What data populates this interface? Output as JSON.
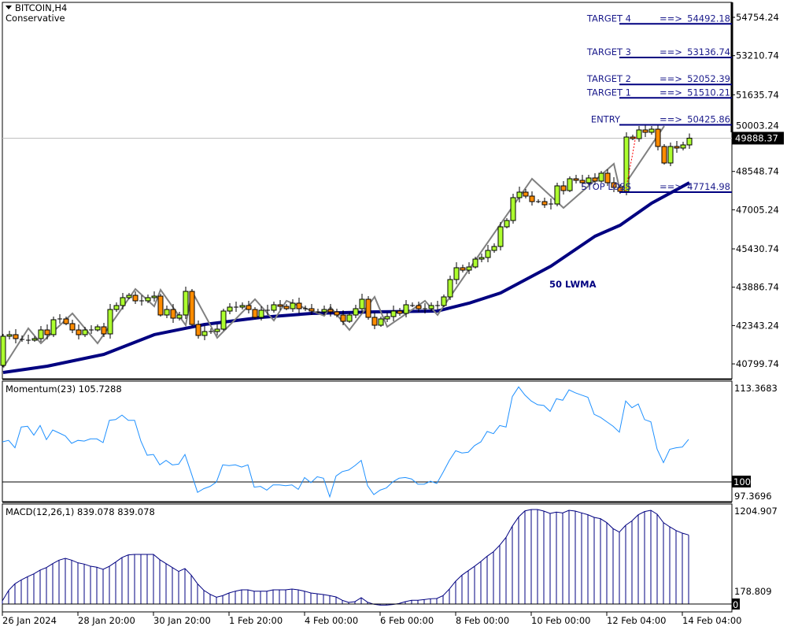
{
  "header": {
    "symbol": "BITCOIN,H4",
    "subtitle": "Conservative"
  },
  "colors": {
    "bull": "#adff2f",
    "bear": "#ff8c00",
    "zigzag": "#808080",
    "lwma": "#000080",
    "levels": "#000080",
    "level_text": "#1c1c8c",
    "momentum": "#1e90ff",
    "macd": "#000080"
  },
  "annotations": {
    "lwma_label": "50 LWMA"
  },
  "current_price": {
    "value": "49888.37",
    "price": 49888.37
  },
  "chart_data": [
    {
      "type": "candlestick",
      "title": "BITCOIN,H4",
      "first_open": 40739,
      "closes": [
        41912,
        41976,
        41817,
        41785,
        41753,
        41817,
        42166,
        41976,
        42578,
        42610,
        42420,
        42166,
        41976,
        42166,
        42166,
        42292,
        42007,
        42990,
        43149,
        43466,
        43561,
        43339,
        43339,
        43466,
        43529,
        42768,
        42990,
        42641,
        42768,
        43719,
        42388,
        41944,
        42103,
        42103,
        42198,
        42927,
        43085,
        43085,
        43149,
        42990,
        42673,
        42959,
        42959,
        43180,
        43117,
        43022,
        43244,
        43022,
        43022,
        42927,
        42895,
        42990,
        42895,
        42768,
        42514,
        42768,
        43022,
        43402,
        42673,
        42356,
        42610,
        42705,
        42927,
        42832,
        43180,
        43149,
        43022,
        43022,
        43149,
        43149,
        43497,
        44195,
        44671,
        44575,
        44702,
        45019,
        45082,
        45368,
        45527,
        46319,
        46573,
        47493,
        47715,
        47556,
        47334,
        47334,
        47207,
        47238,
        47968,
        47778,
        48254,
        48190,
        48095,
        48286,
        48159,
        48476,
        48095,
        47905,
        47746,
        49934,
        49871,
        50220,
        50125,
        50251,
        49554,
        48888,
        49554,
        49490,
        49617,
        49888.37
      ],
      "ylim": [
        40799.74,
        54754.24
      ],
      "y_ticks": [
        "54754.24",
        "53210.74",
        "51635.74",
        "50003.24",
        "48548.74",
        "47005.24",
        "45430.74",
        "43886.74",
        "42343.24",
        "40799.74"
      ],
      "x_ticks": [
        {
          "index": 0,
          "label": "26 Jan 2024"
        },
        {
          "index": 12,
          "label": "28 Jan 20:00"
        },
        {
          "index": 24,
          "label": "30 Jan 20:00"
        },
        {
          "index": 36,
          "label": "1 Feb 20:00"
        },
        {
          "index": 48,
          "label": "4 Feb 00:00"
        },
        {
          "index": 60,
          "label": "6 Feb 00:00"
        },
        {
          "index": 72,
          "label": "8 Feb 00:00"
        },
        {
          "index": 84,
          "label": "10 Feb 00:00"
        },
        {
          "index": 96,
          "label": "12 Feb 04:00"
        },
        {
          "index": 108,
          "label": "14 Feb 04:00"
        }
      ],
      "lwma": {
        "name": "50 LWMA",
        "points": [
          [
            0,
            40453
          ],
          [
            7,
            40707
          ],
          [
            16,
            41182
          ],
          [
            24,
            41976
          ],
          [
            32,
            42388
          ],
          [
            41,
            42673
          ],
          [
            49,
            42832
          ],
          [
            59,
            42895
          ],
          [
            69,
            42927
          ],
          [
            74,
            43244
          ],
          [
            79,
            43656
          ],
          [
            87,
            44734
          ],
          [
            94,
            45939
          ],
          [
            98,
            46383
          ],
          [
            103,
            47271
          ],
          [
            109,
            48095
          ]
        ]
      },
      "zigzag": [
        [
          0,
          40643
        ],
        [
          4,
          42229
        ],
        [
          6,
          41627
        ],
        [
          11,
          42832
        ],
        [
          15,
          41627
        ],
        [
          21,
          43814
        ],
        [
          24,
          43117
        ],
        [
          25,
          43783
        ],
        [
          29,
          42356
        ],
        [
          30,
          43719
        ],
        [
          34,
          41849
        ],
        [
          40,
          43402
        ],
        [
          43,
          42546
        ],
        [
          45,
          43339
        ],
        [
          51,
          42736
        ],
        [
          52,
          43085
        ],
        [
          55,
          42166
        ],
        [
          59,
          43497
        ],
        [
          61,
          42292
        ],
        [
          67,
          43339
        ],
        [
          69,
          42768
        ],
        [
          74,
          44607
        ],
        [
          84,
          48254
        ],
        [
          89,
          47080
        ],
        [
          97,
          48856
        ],
        [
          98,
          47746
        ],
        [
          105,
          50378
        ]
      ],
      "levels": [
        {
          "label": "TARGET 4",
          "arrow": "==>",
          "value": "54492.18",
          "price": 54492.18
        },
        {
          "label": "TARGET 3",
          "arrow": "==>",
          "value": "53136.74",
          "price": 53136.74
        },
        {
          "label": "TARGET 2",
          "arrow": "==>",
          "value": "52052.39",
          "price": 52052.39
        },
        {
          "label": "TARGET 1",
          "arrow": "==>",
          "value": "51510.21",
          "price": 51510.21
        },
        {
          "label": "ENTRY",
          "arrow": "==>",
          "value": "50425.86",
          "price": 50425.86
        },
        {
          "label": "STOP LOSS",
          "arrow": "==>",
          "value": "47714.98",
          "price": 47714.98
        }
      ]
    },
    {
      "type": "line",
      "title": "Momentum(23) 105.7288",
      "reference_level": "100",
      "y_ticks": [
        "113.3683",
        "97.3696"
      ],
      "ylim": [
        97.3696,
        113.3683
      ],
      "values": [
        105.4,
        105.6,
        104.6,
        107.4,
        107.5,
        106.3,
        107.6,
        105.7,
        107.0,
        106.6,
        106.2,
        105.2,
        105.6,
        105.5,
        105.8,
        105.8,
        105.3,
        108.3,
        108.4,
        109.0,
        108.3,
        108.3,
        105.5,
        103.6,
        103.7,
        102.3,
        102.9,
        102.3,
        102.4,
        103.7,
        101.2,
        98.6,
        99.1,
        99.4,
        100.0,
        102.3,
        102.2,
        102.3,
        102.0,
        102.3,
        99.3,
        99.4,
        98.9,
        99.6,
        99.6,
        99.5,
        99.6,
        99.0,
        100.6,
        99.9,
        100.7,
        100.5,
        98.0,
        100.8,
        101.4,
        101.6,
        102.2,
        102.9,
        99.5,
        98.3,
        98.9,
        99.2,
        100.0,
        100.5,
        100.6,
        100.4,
        99.7,
        99.7,
        100.1,
        99.8,
        101.3,
        102.9,
        104.2,
        103.9,
        104.0,
        104.9,
        105.4,
        106.8,
        106.5,
        107.6,
        107.4,
        111.5,
        112.8,
        111.7,
        110.9,
        110.4,
        110.3,
        109.5,
        111.2,
        111.0,
        112.4,
        112.0,
        111.7,
        111.4,
        109.1,
        108.7,
        108.1,
        107.5,
        106.7,
        110.9,
        110.0,
        110.5,
        108.4,
        108.1,
        104.4,
        102.6,
        104.4,
        104.6,
        104.7,
        105.7288
      ]
    },
    {
      "type": "bar",
      "title": "MACD(12,26,1) 839.078 839.078",
      "y_ticks": [
        "1204.907",
        "0",
        "178.809"
      ],
      "ylim": [
        0,
        1204.907
      ],
      "values": [
        38,
        166,
        246,
        293,
        332,
        367,
        412,
        443,
        491,
        533,
        555,
        533,
        501,
        485,
        459,
        447,
        421,
        459,
        510,
        565,
        597,
        603,
        603,
        603,
        603,
        539,
        491,
        443,
        396,
        431,
        351,
        246,
        166,
        118,
        83,
        102,
        134,
        156,
        172,
        172,
        156,
        156,
        156,
        172,
        172,
        172,
        182,
        172,
        156,
        134,
        124,
        115,
        102,
        86,
        45,
        19,
        29,
        77,
        22,
        -3,
        -13,
        -13,
        -6,
        6,
        29,
        45,
        45,
        54,
        64,
        67,
        102,
        182,
        278,
        351,
        405,
        459,
        517,
        581,
        635,
        715,
        810,
        947,
        1059,
        1132,
        1148,
        1148,
        1129,
        1101,
        1117,
        1107,
        1139,
        1129,
        1107,
        1085,
        1053,
        1037,
        989,
        916,
        874,
        957,
        1011,
        1085,
        1123,
        1139,
        1091,
        989,
        938,
        893,
        861,
        839.078
      ]
    }
  ]
}
